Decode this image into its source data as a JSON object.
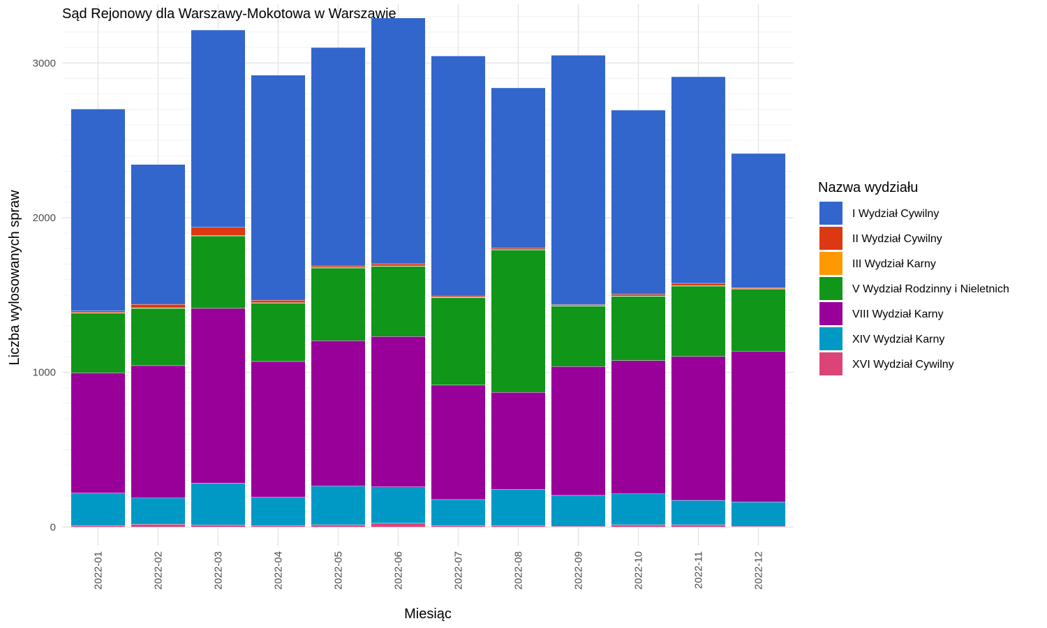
{
  "chart_data": {
    "type": "bar",
    "stacked": true,
    "title": "Sąd Rejonowy dla Warszawy-Mokotowa w Warszawie",
    "xlabel": "Miesiąc",
    "ylabel": "Liczba wylosowanych spraw",
    "ylim": [
      -120,
      3380
    ],
    "yticks": [
      0,
      1000,
      2000,
      3000
    ],
    "grid": true,
    "legend": {
      "title": "Nazwa wydziału",
      "placement": "right"
    },
    "categories": [
      "2022-01",
      "2022-02",
      "2022-03",
      "2022-04",
      "2022-05",
      "2022-06",
      "2022-07",
      "2022-08",
      "2022-09",
      "2022-10",
      "2022-11",
      "2022-12"
    ],
    "series": [
      {
        "name": "XVI Wydział Cywilny",
        "color": "#dc4477",
        "values": [
          10,
          18,
          14,
          8,
          15,
          25,
          8,
          8,
          5,
          15,
          15,
          5
        ]
      },
      {
        "name": "XIV Wydział Karny",
        "color": "#0099c6",
        "values": [
          210,
          170,
          270,
          185,
          250,
          235,
          170,
          235,
          200,
          200,
          158,
          157
        ]
      },
      {
        "name": "VIII Wydział Karny",
        "color": "#990099",
        "values": [
          777,
          856,
          1130,
          878,
          940,
          972,
          740,
          628,
          833,
          862,
          930,
          975
        ]
      },
      {
        "name": "V Wydział Rodzinny i Nieletnich",
        "color": "#109618",
        "values": [
          387,
          370,
          468,
          377,
          470,
          453,
          565,
          920,
          390,
          415,
          455,
          402
        ]
      },
      {
        "name": "III Wydział Karny",
        "color": "#ff9900",
        "values": [
          2,
          3,
          2,
          2,
          2,
          2,
          2,
          2,
          2,
          2,
          2,
          2
        ]
      },
      {
        "name": "II Wydział Cywilny",
        "color": "#dc3912",
        "values": [
          11,
          23,
          54,
          16,
          11,
          15,
          8,
          10,
          8,
          11,
          16,
          7
        ]
      },
      {
        "name": "I Wydział Cywilny",
        "color": "#3366cc",
        "values": [
          1305,
          904,
          1275,
          1455,
          1412,
          1589,
          1552,
          1036,
          1612,
          1190,
          1335,
          867
        ]
      }
    ]
  }
}
